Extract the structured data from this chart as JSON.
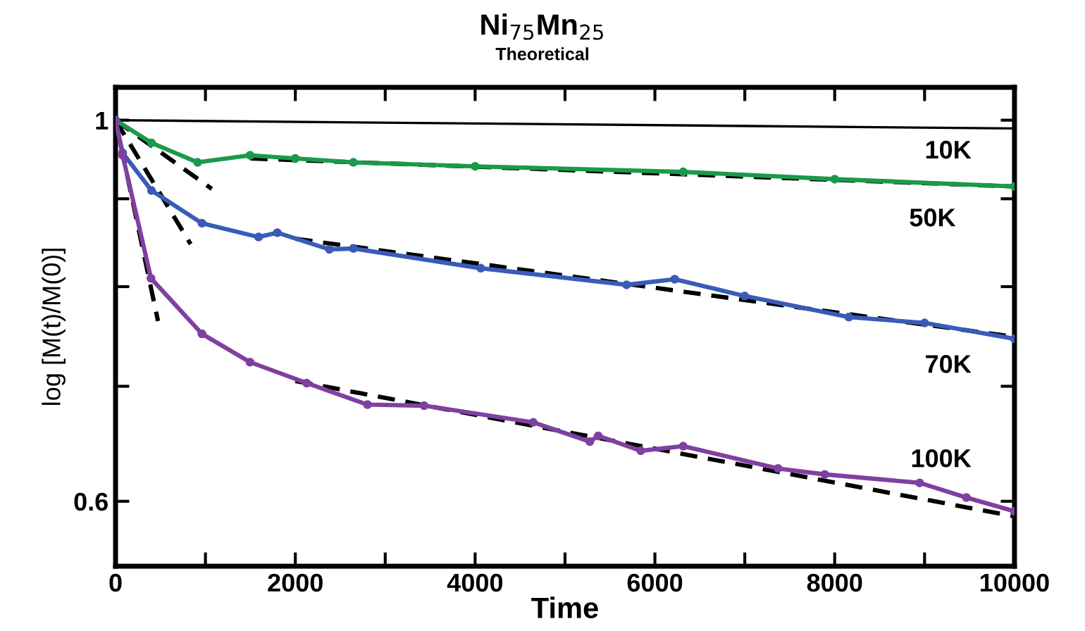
{
  "chart_data": {
    "type": "line",
    "title": "Ni$_{75}$Mn$_{25}$",
    "subtitle": "Theoretical",
    "xlabel": "Time",
    "ylabel": "log [M(t)/M(0)]",
    "log": "y",
    "grid": false,
    "legend": false,
    "xlim": [
      0,
      10000
    ],
    "ylim": [
      0.55,
      1.045
    ],
    "xticks": [
      0,
      {
        "value": 1000,
        "label": null
      },
      2000,
      {
        "value": 3000,
        "label": null
      },
      4000,
      {
        "value": 5000,
        "label": null
      },
      6000,
      {
        "value": 7000,
        "label": null
      },
      8000,
      {
        "value": 9000,
        "label": null
      },
      10000
    ],
    "yticks": [
      {
        "value": 0.6,
        "label": "0.6"
      },
      {
        "value": 0.7,
        "label": null
      },
      {
        "value": 0.8,
        "label": null
      },
      {
        "value": 0.9,
        "label": null
      },
      1
    ],
    "series": [
      {
        "name": "10K",
        "color": "#000000",
        "marker": "none",
        "line_style": "solid",
        "x": [
          0,
          10000
        ],
        "values": [
          1,
          0.989
        ]
      },
      {
        "name": "50K",
        "color": "#1a9a4a",
        "marker": "circle",
        "line_style": "solid",
        "x": [
          0,
          400,
          913,
          1496,
          2000,
          2646,
          4000,
          6315,
          8000,
          10000
        ],
        "values": [
          1,
          0.97,
          0.945,
          0.954,
          0.95,
          0.945,
          0.94,
          0.933,
          0.924,
          0.915
        ]
      },
      {
        "name": "70K",
        "color": "#3a5bb8",
        "marker": "circle",
        "line_style": "solid",
        "x": [
          0,
          79,
          400,
          961,
          1591,
          1800,
          2378,
          2646,
          4063,
          5685,
          6220,
          7000,
          8157,
          9000,
          10000
        ],
        "values": [
          1,
          0.957,
          0.91,
          0.871,
          0.855,
          0.86,
          0.841,
          0.842,
          0.82,
          0.802,
          0.808,
          0.79,
          0.768,
          0.762,
          0.746
        ]
      },
      {
        "name": "100K",
        "color": "#8040a0",
        "marker": "circle",
        "line_style": "solid",
        "x": [
          0,
          79,
          394,
          961,
          1496,
          2126,
          2803,
          3433,
          4646,
          5276,
          5370,
          5843,
          6315,
          7370,
          7890,
          8945,
          9465,
          10000
        ],
        "values": [
          1,
          0.954,
          0.809,
          0.751,
          0.723,
          0.703,
          0.683,
          0.682,
          0.667,
          0.65,
          0.655,
          0.642,
          0.646,
          0.627,
          0.622,
          0.615,
          0.603,
          0.592
        ]
      },
      {
        "color": "#000000",
        "marker": "none",
        "line_style": "dashed",
        "x": [
          0,
          1071
        ],
        "values": [
          1,
          0.912
        ]
      },
      {
        "color": "#000000",
        "marker": "none",
        "line_style": "dashed",
        "x": [
          1500,
          10000
        ],
        "values": [
          0.95,
          0.915
        ]
      },
      {
        "color": "#000000",
        "marker": "none",
        "line_style": "dashed",
        "x": [
          0,
          835
        ],
        "values": [
          1,
          0.847
        ]
      },
      {
        "color": "#000000",
        "marker": "none",
        "line_style": "dashed",
        "x": [
          2000,
          10000
        ],
        "values": [
          0.853,
          0.748
        ]
      },
      {
        "color": "#000000",
        "marker": "none",
        "line_style": "dashed",
        "x": [
          0,
          472
        ],
        "values": [
          1,
          0.764
        ]
      },
      {
        "color": "#000000",
        "marker": "none",
        "line_style": "dashed",
        "x": [
          2000,
          10000
        ],
        "values": [
          0.705,
          0.588
        ]
      }
    ]
  }
}
